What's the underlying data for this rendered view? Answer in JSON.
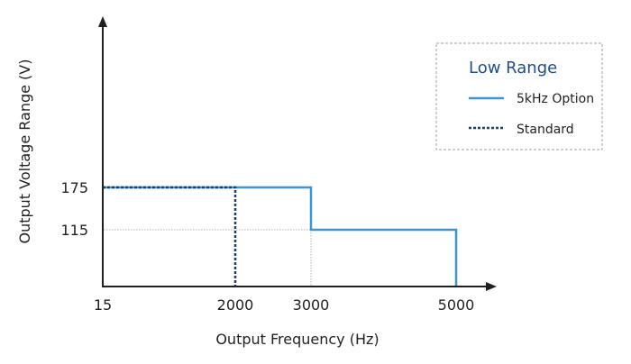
{
  "chart_data": {
    "type": "line",
    "title": "",
    "xlabel": "Output Frequency (Hz)",
    "ylabel": "Output Voltage Range (V)",
    "x_ticks": [
      15,
      2000,
      3000,
      5000
    ],
    "y_ticks": [
      175,
      115
    ],
    "x_scale": "non-uniform (ticks not proportionally spaced)",
    "grid": "dotted reference lines at 115 V and 3000 Hz",
    "legend": {
      "title": "Low Range",
      "placement": "top-right",
      "entries": [
        "5kHz Option",
        "Standard"
      ]
    },
    "series": [
      {
        "name": "5kHz Option",
        "style": "solid",
        "color": "#3a95d0",
        "points": [
          [
            15,
            175
          ],
          [
            3000,
            175
          ],
          [
            3000,
            115
          ],
          [
            5000,
            115
          ],
          [
            5000,
            0
          ]
        ]
      },
      {
        "name": "Standard",
        "style": "dotted",
        "color": "#1d3f6e",
        "points": [
          [
            15,
            175
          ],
          [
            2000,
            175
          ],
          [
            2000,
            0
          ]
        ]
      }
    ],
    "colors": {
      "axis": "#231f20",
      "legend_title": "#1f4e89",
      "grid": "#b0b0b0"
    }
  }
}
